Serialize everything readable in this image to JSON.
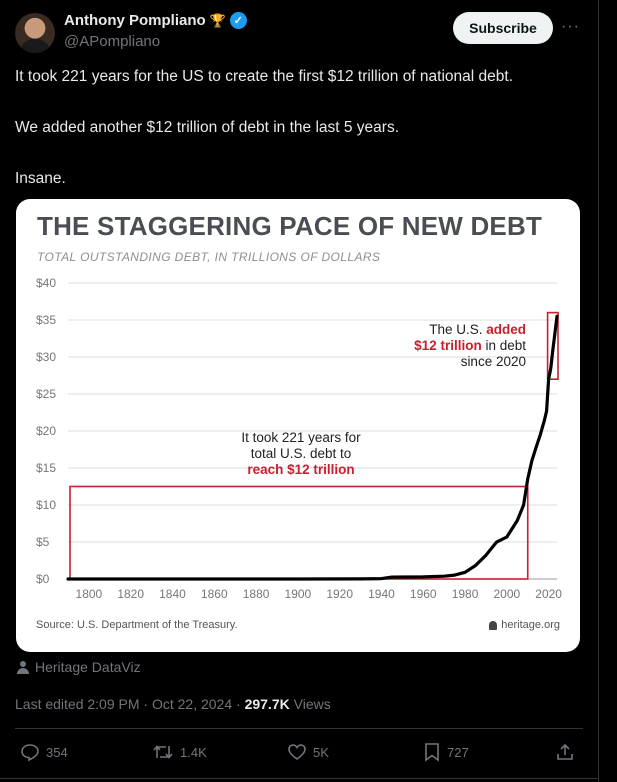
{
  "author": {
    "name": "Anthony Pompliano",
    "emoji": "🏆",
    "handle": "@APompliano"
  },
  "subscribe_label": "Subscribe",
  "more_label": "···",
  "tweet": {
    "line1": "It took 221 years for the US to create the first $12 trillion of national debt.",
    "line2": "We added another $12 trillion of debt in the last 5 years.",
    "line3": "Insane."
  },
  "chart_data": {
    "type": "line",
    "title": "THE STAGGERING PACE OF NEW DEBT",
    "subtitle": "TOTAL OUTSTANDING DEBT, IN TRILLIONS OF DOLLARS",
    "xlim": [
      1790,
      2024
    ],
    "ylim": [
      0,
      40
    ],
    "y_ticks": [
      0,
      5,
      10,
      15,
      20,
      25,
      30,
      35,
      40
    ],
    "y_tick_labels": [
      "$0",
      "$5",
      "$10",
      "$15",
      "$20",
      "$25",
      "$30",
      "$35",
      "$40"
    ],
    "x_ticks": [
      1800,
      1820,
      1840,
      1860,
      1880,
      1900,
      1920,
      1940,
      1960,
      1980,
      2000,
      2020
    ],
    "x": [
      1790,
      1900,
      1930,
      1940,
      1945,
      1960,
      1970,
      1975,
      1980,
      1985,
      1990,
      1995,
      2000,
      2005,
      2008,
      2010,
      2012,
      2014,
      2016,
      2018,
      2019,
      2020,
      2021,
      2022,
      2023,
      2024
    ],
    "y": [
      0,
      0,
      0.02,
      0.05,
      0.26,
      0.29,
      0.38,
      0.53,
      0.91,
      1.82,
      3.2,
      4.97,
      5.67,
      7.9,
      10.0,
      13.5,
      16.0,
      17.8,
      19.5,
      21.5,
      22.7,
      27.0,
      28.4,
      30.9,
      33.2,
      35.5
    ],
    "annotations": [
      {
        "line1": "It took 221 years for",
        "line2": "total U.S. debt to",
        "line3": "reach $12 trillion",
        "year_range": [
          1790,
          2010
        ],
        "value_range": [
          0,
          12.5
        ]
      },
      {
        "line1_prefix": "The U.S. ",
        "line1_highlight": "added",
        "line2_highlight": "$12 trillion",
        "line2_suffix": " in debt",
        "line3": "since 2020",
        "year_range": [
          2019.5,
          2024
        ],
        "value_range": [
          27,
          36
        ]
      }
    ],
    "source": "Source: U.S. Department of the Treasury.",
    "brand": "heritage.org",
    "colors": {
      "line": "#000000",
      "highlight": "#c8202f",
      "grid": "#dddddd",
      "title": "#4a4e54"
    },
    "grid": true
  },
  "credit": "Heritage DataViz",
  "meta": {
    "edited": "Last edited 2:09 PM · Oct 22, 2024 · ",
    "views_count": "297.7K",
    "views_label": " Views"
  },
  "actions": {
    "replies": "354",
    "reposts": "1.4K",
    "likes": "5K",
    "bookmarks": "727"
  }
}
